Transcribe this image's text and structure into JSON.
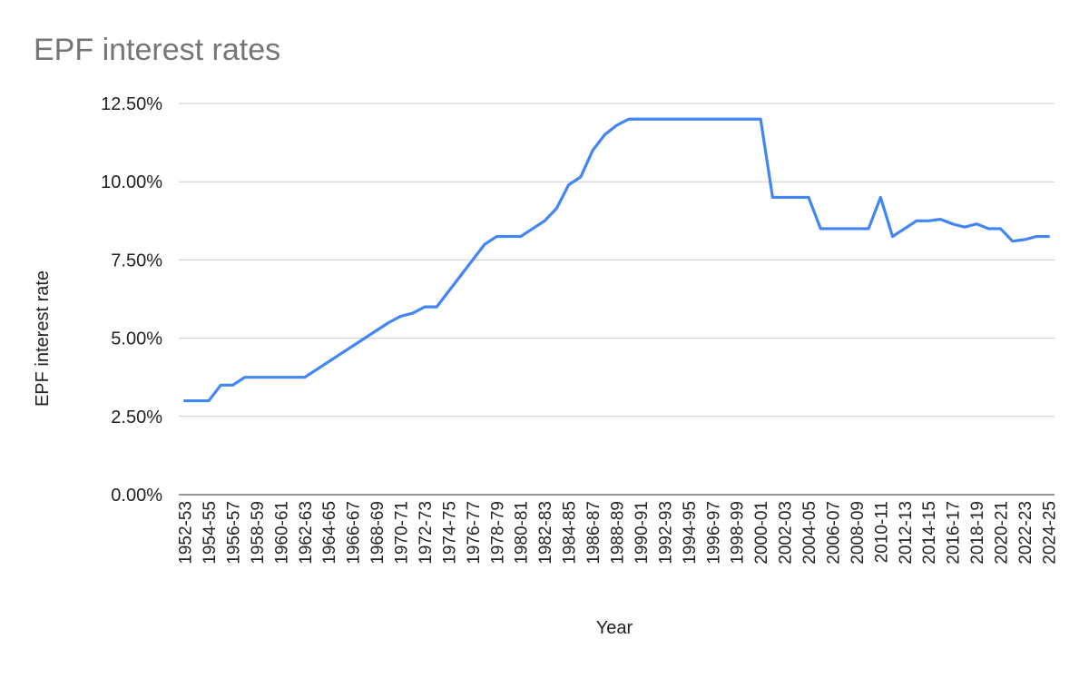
{
  "chart_data": {
    "type": "line",
    "title": "EPF interest rates",
    "xlabel": "Year",
    "ylabel": "EPF interest rate",
    "ylim": [
      0,
      12.5
    ],
    "yticks": [
      "0.00%",
      "2.50%",
      "5.00%",
      "7.50%",
      "10.00%",
      "12.50%"
    ],
    "grid": true,
    "legend": "none",
    "line_color": "#4285f4",
    "x": [
      "1952-53",
      "1953-54",
      "1954-55",
      "1955-56",
      "1956-57",
      "1957-58",
      "1958-59",
      "1959-60",
      "1960-61",
      "1961-62",
      "1962-63",
      "1963-64",
      "1964-65",
      "1965-66",
      "1966-67",
      "1967-68",
      "1968-69",
      "1969-70",
      "1970-71",
      "1971-72",
      "1972-73",
      "1973-74",
      "1974-75",
      "1975-76",
      "1976-77",
      "1977-78",
      "1978-79",
      "1979-80",
      "1980-81",
      "1981-82",
      "1982-83",
      "1983-84",
      "1984-85",
      "1985-86",
      "1986-87",
      "1987-88",
      "1988-89",
      "1989-90",
      "1990-91",
      "1991-92",
      "1992-93",
      "1993-94",
      "1994-95",
      "1995-96",
      "1996-97",
      "1997-98",
      "1998-99",
      "1999-00",
      "2000-01",
      "2001-02",
      "2002-03",
      "2003-04",
      "2004-05",
      "2005-06",
      "2006-07",
      "2007-08",
      "2008-09",
      "2009-10",
      "2010-11",
      "2011-12",
      "2012-13",
      "2013-14",
      "2014-15",
      "2015-16",
      "2016-17",
      "2017-18",
      "2018-19",
      "2019-20",
      "2020-21",
      "2021-22",
      "2022-23",
      "2023-24",
      "2024-25"
    ],
    "xtick_labels": [
      "1952-53",
      "1954-55",
      "1956-57",
      "1958-59",
      "1960-61",
      "1962-63",
      "1964-65",
      "1966-67",
      "1968-69",
      "1970-71",
      "1972-73",
      "1974-75",
      "1976-77",
      "1978-79",
      "1980-81",
      "1982-83",
      "1984-85",
      "1986-87",
      "1988-89",
      "1990-91",
      "1992-93",
      "1994-95",
      "1996-97",
      "1998-99",
      "2000-01",
      "2002-03",
      "2004-05",
      "2006-07",
      "2008-09",
      "2010-11",
      "2012-13",
      "2014-15",
      "2016-17",
      "2018-19",
      "2020-21",
      "2022-23",
      "2024-25"
    ],
    "series": [
      {
        "values": [
          3.0,
          3.0,
          3.0,
          3.5,
          3.5,
          3.75,
          3.75,
          3.75,
          3.75,
          3.75,
          3.75,
          4.0,
          4.25,
          4.5,
          4.75,
          5.0,
          5.25,
          5.5,
          5.7,
          5.8,
          6.0,
          6.0,
          6.5,
          7.0,
          7.5,
          8.0,
          8.25,
          8.25,
          8.25,
          8.5,
          8.75,
          9.15,
          9.9,
          10.15,
          11.0,
          11.5,
          11.8,
          12.0,
          12.0,
          12.0,
          12.0,
          12.0,
          12.0,
          12.0,
          12.0,
          12.0,
          12.0,
          12.0,
          12.0,
          9.5,
          9.5,
          9.5,
          9.5,
          8.5,
          8.5,
          8.5,
          8.5,
          8.5,
          9.5,
          8.25,
          8.5,
          8.75,
          8.75,
          8.8,
          8.65,
          8.55,
          8.65,
          8.5,
          8.5,
          8.1,
          8.15,
          8.25,
          8.25
        ]
      }
    ]
  }
}
